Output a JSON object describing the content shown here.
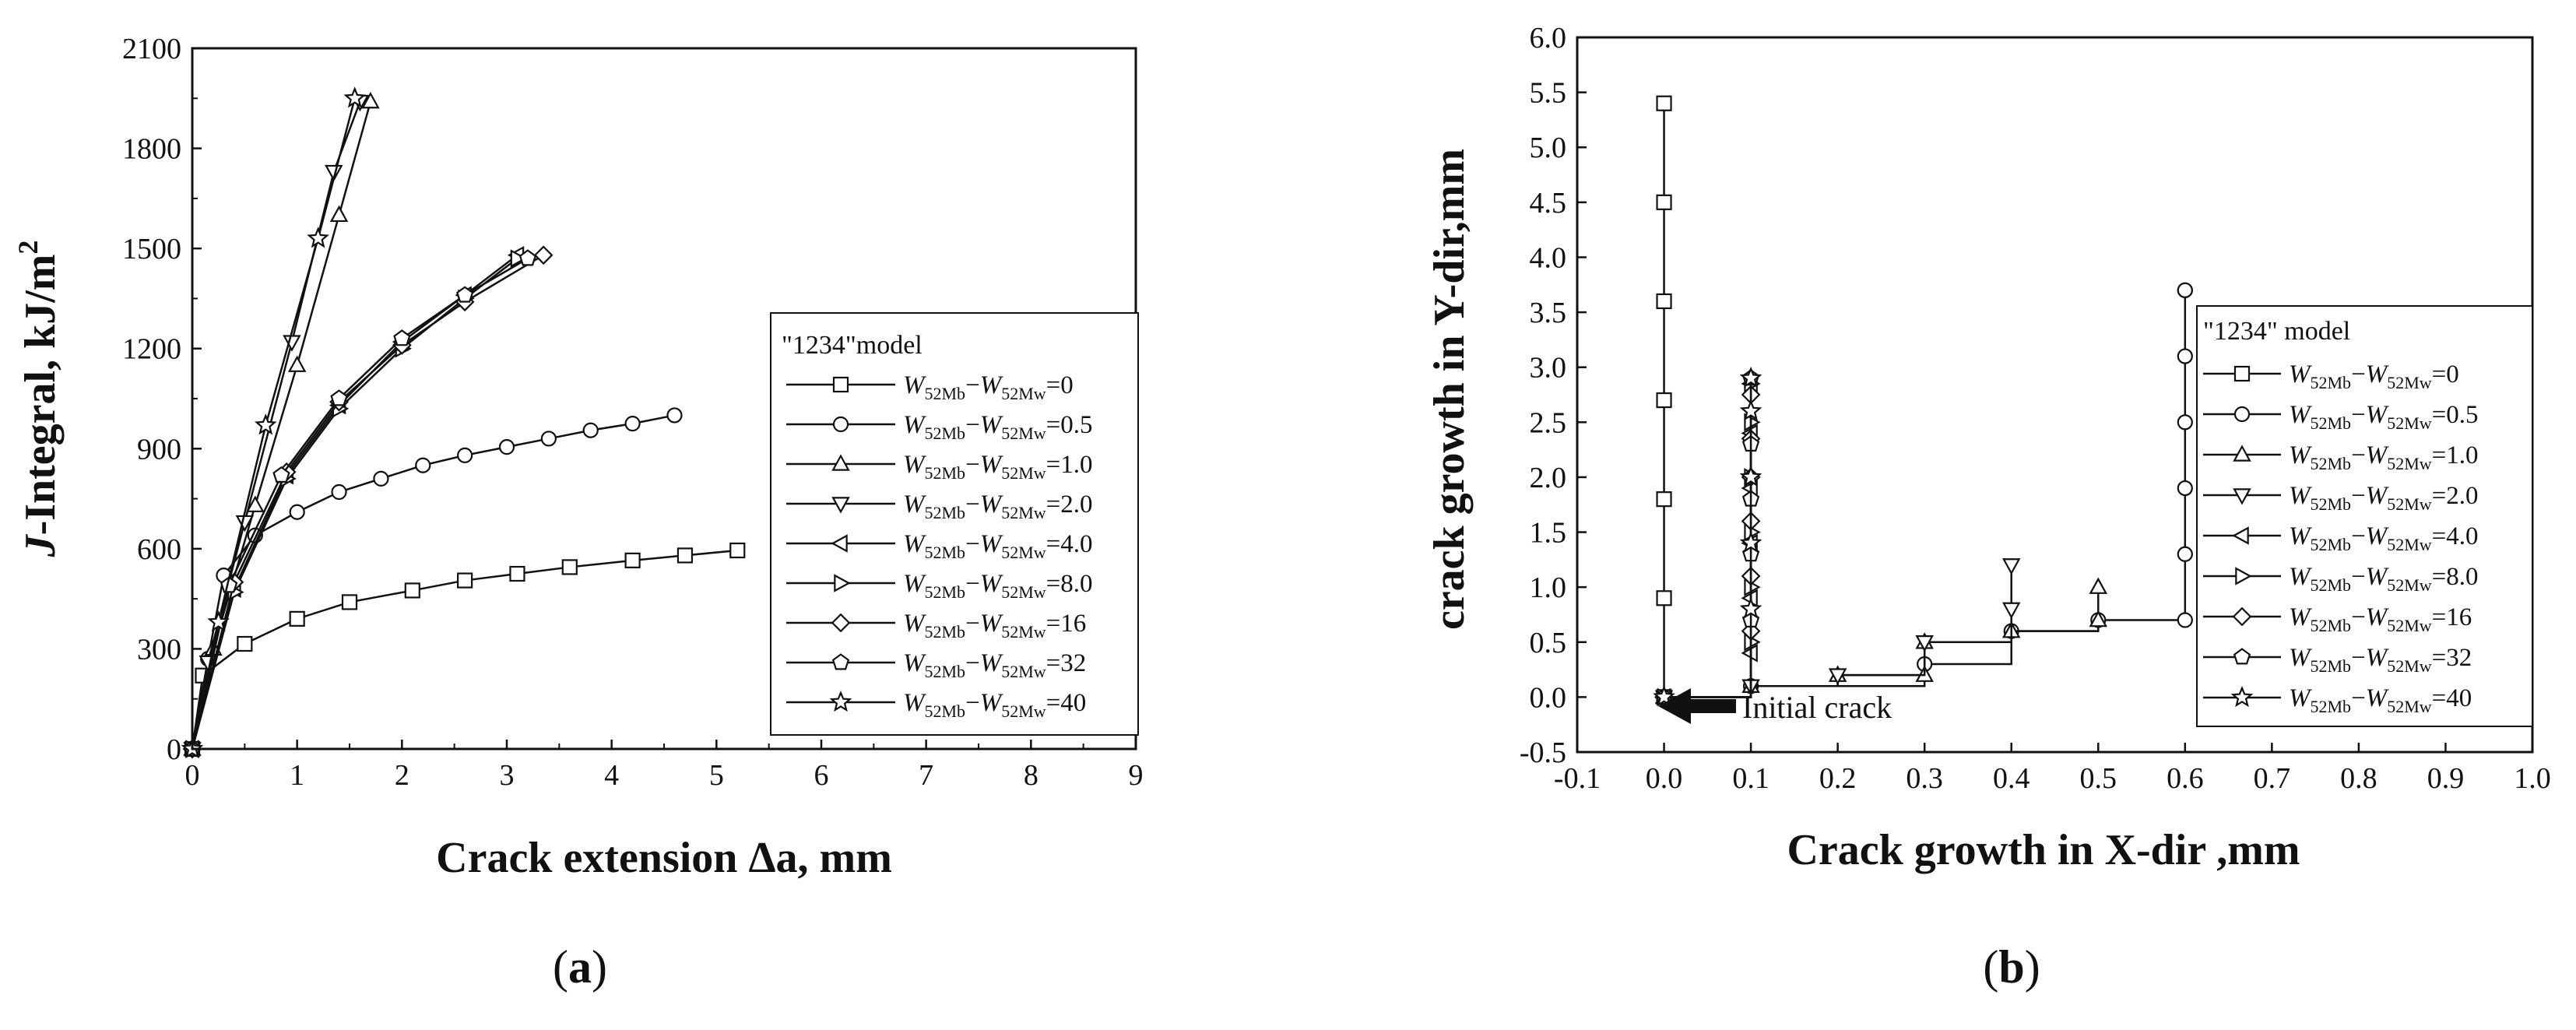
{
  "chart_data": [
    {
      "type": "line",
      "panel_label": "(a)",
      "panel_letter": "a",
      "xlabel": "Crack extension Δa, mm",
      "ylabel": "J-Integral, kJ/m²",
      "ylabel_italic_part": "J",
      "ylabel_rest": "-Integral, kJ/m",
      "ylabel_sup": "2",
      "xlim": [
        0,
        9
      ],
      "ylim": [
        0,
        2100
      ],
      "xticks": [
        "0",
        "1",
        "2",
        "3",
        "4",
        "5",
        "6",
        "7",
        "8",
        "9"
      ],
      "yticks": [
        "0",
        "300",
        "600",
        "900",
        "1200",
        "1500",
        "1800",
        "2100"
      ],
      "legend_title": "\"1234\"model",
      "legend_position": "right",
      "series": [
        {
          "name": "W52Mb−W52Mw=0",
          "marker": "square",
          "x": [
            0,
            0.1,
            0.5,
            1.0,
            1.5,
            2.1,
            2.6,
            3.1,
            3.6,
            4.2,
            4.7,
            5.2
          ],
          "y": [
            0,
            220,
            315,
            390,
            440,
            475,
            505,
            525,
            545,
            565,
            580,
            595
          ]
        },
        {
          "name": "W52Mb−W52Mw=0.5",
          "marker": "circle",
          "x": [
            0,
            0.15,
            0.3,
            0.6,
            1.0,
            1.4,
            1.8,
            2.2,
            2.6,
            3.0,
            3.4,
            3.8,
            4.2,
            4.6
          ],
          "y": [
            0,
            270,
            520,
            640,
            710,
            770,
            810,
            850,
            880,
            905,
            930,
            955,
            975,
            1000
          ]
        },
        {
          "name": "W52Mb−W52Mw=1.0",
          "marker": "triangle-up",
          "x": [
            0,
            0.2,
            0.6,
            1.0,
            1.4,
            1.7
          ],
          "y": [
            0,
            300,
            730,
            1150,
            1600,
            1940
          ]
        },
        {
          "name": "W52Mb−W52Mw=2.0",
          "marker": "triangle-down",
          "x": [
            0,
            0.15,
            0.5,
            0.95,
            1.35,
            1.6
          ],
          "y": [
            0,
            260,
            680,
            1220,
            1730,
            1940
          ]
        },
        {
          "name": "W52Mb−W52Mw=4.0",
          "marker": "triangle-left",
          "x": [
            0,
            0.4,
            0.9,
            1.4,
            2.0,
            2.6,
            3.1
          ],
          "y": [
            0,
            480,
            820,
            1030,
            1220,
            1360,
            1480
          ]
        },
        {
          "name": "W52Mb−W52Mw=8.0",
          "marker": "triangle-right",
          "x": [
            0,
            0.4,
            0.9,
            1.4,
            2.0,
            2.6,
            3.1
          ],
          "y": [
            0,
            470,
            810,
            1020,
            1200,
            1350,
            1470
          ]
        },
        {
          "name": "W52Mb−W52Mw=16",
          "marker": "diamond",
          "x": [
            0,
            0.4,
            0.9,
            1.4,
            2.0,
            2.6,
            3.35
          ],
          "y": [
            0,
            500,
            830,
            1040,
            1210,
            1340,
            1480
          ]
        },
        {
          "name": "W52Mb−W52Mw=32",
          "marker": "pentagon",
          "x": [
            0,
            0.35,
            0.85,
            1.4,
            2.0,
            2.6,
            3.2
          ],
          "y": [
            0,
            490,
            820,
            1050,
            1230,
            1360,
            1470
          ]
        },
        {
          "name": "W52Mb−W52Mw=40",
          "marker": "star",
          "x": [
            0,
            0.25,
            0.7,
            1.2,
            1.55
          ],
          "y": [
            0,
            380,
            970,
            1530,
            1950
          ]
        }
      ]
    },
    {
      "type": "line",
      "panel_label": "(b)",
      "panel_letter": "b",
      "xlabel": "Crack growth in X-dir ,mm",
      "ylabel": "crack growth in Y-dir,mm",
      "xlim": [
        -0.1,
        1.0
      ],
      "ylim": [
        -0.5,
        6.0
      ],
      "xticks": [
        "-0.1",
        "0.0",
        "0.1",
        "0.2",
        "0.3",
        "0.4",
        "0.5",
        "0.6",
        "0.7",
        "0.8",
        "0.9",
        "1.0"
      ],
      "yticks": [
        "-0.5",
        "0.0",
        "0.5",
        "1.0",
        "1.5",
        "2.0",
        "2.5",
        "3.0",
        "3.5",
        "4.0",
        "4.5",
        "5.0",
        "5.5",
        "6.0"
      ],
      "legend_title": "\"1234\" model",
      "legend_position": "right",
      "annotation": "Initial crack",
      "annotation_at": [
        0.0,
        -0.25
      ],
      "series": [
        {
          "name": "W52Mb−W52Mw=0",
          "marker": "square",
          "x": [
            0,
            0,
            0,
            0,
            0,
            0,
            0
          ],
          "y": [
            0,
            0.9,
            1.8,
            2.7,
            3.6,
            4.5,
            5.4
          ]
        },
        {
          "name": "W52Mb−W52Mw=0.5",
          "marker": "circle",
          "x": [
            0,
            0.1,
            0.3,
            0.4,
            0.5,
            0.6,
            0.6,
            0.6,
            0.6,
            0.6,
            0.6,
            0.6
          ],
          "y": [
            0,
            0.1,
            0.3,
            0.6,
            0.7,
            0.7,
            1.3,
            1.9,
            2.5,
            3.1,
            3.7,
            3.7
          ]
        },
        {
          "name": "W52Mb−W52Mw=1.0",
          "marker": "triangle-up",
          "x": [
            0,
            0.1,
            0.2,
            0.3,
            0.3,
            0.4,
            0.5,
            0.5
          ],
          "y": [
            0,
            0.1,
            0.2,
            0.2,
            0.5,
            0.6,
            0.7,
            1.0
          ]
        },
        {
          "name": "W52Mb−W52Mw=2.0",
          "marker": "triangle-down",
          "x": [
            0,
            0.1,
            0.2,
            0.3,
            0.4,
            0.4
          ],
          "y": [
            0,
            0.1,
            0.2,
            0.5,
            0.8,
            1.2
          ]
        },
        {
          "name": "W52Mb−W52Mw=4.0",
          "marker": "triangle-left",
          "x": [
            0,
            0.1,
            0.1,
            0.1,
            0.1,
            0.1,
            0.1
          ],
          "y": [
            0,
            0.4,
            0.9,
            1.4,
            1.9,
            2.4,
            2.85
          ]
        },
        {
          "name": "W52Mb−W52Mw=8.0",
          "marker": "triangle-right",
          "x": [
            0,
            0.1,
            0.1,
            0.1,
            0.1,
            0.1,
            0.1
          ],
          "y": [
            0,
            0.5,
            1.0,
            1.5,
            2.0,
            2.5,
            2.85
          ]
        },
        {
          "name": "W52Mb−W52Mw=16",
          "marker": "diamond",
          "x": [
            0,
            0.1,
            0.1,
            0.1,
            0.1,
            0.1,
            0.1
          ],
          "y": [
            0,
            0.6,
            1.1,
            1.6,
            2.0,
            2.35,
            2.75
          ]
        },
        {
          "name": "W52Mb−W52Mw=32",
          "marker": "pentagon",
          "x": [
            0,
            0.1,
            0.1,
            0.1,
            0.1,
            0.1
          ],
          "y": [
            0,
            0.7,
            1.3,
            1.8,
            2.3,
            2.9
          ]
        },
        {
          "name": "W52Mb−W52Mw=40",
          "marker": "star",
          "x": [
            0,
            0.1,
            0.1,
            0.1,
            0.1,
            0.1
          ],
          "y": [
            0,
            0.8,
            1.4,
            2.0,
            2.6,
            2.9
          ]
        }
      ]
    }
  ]
}
